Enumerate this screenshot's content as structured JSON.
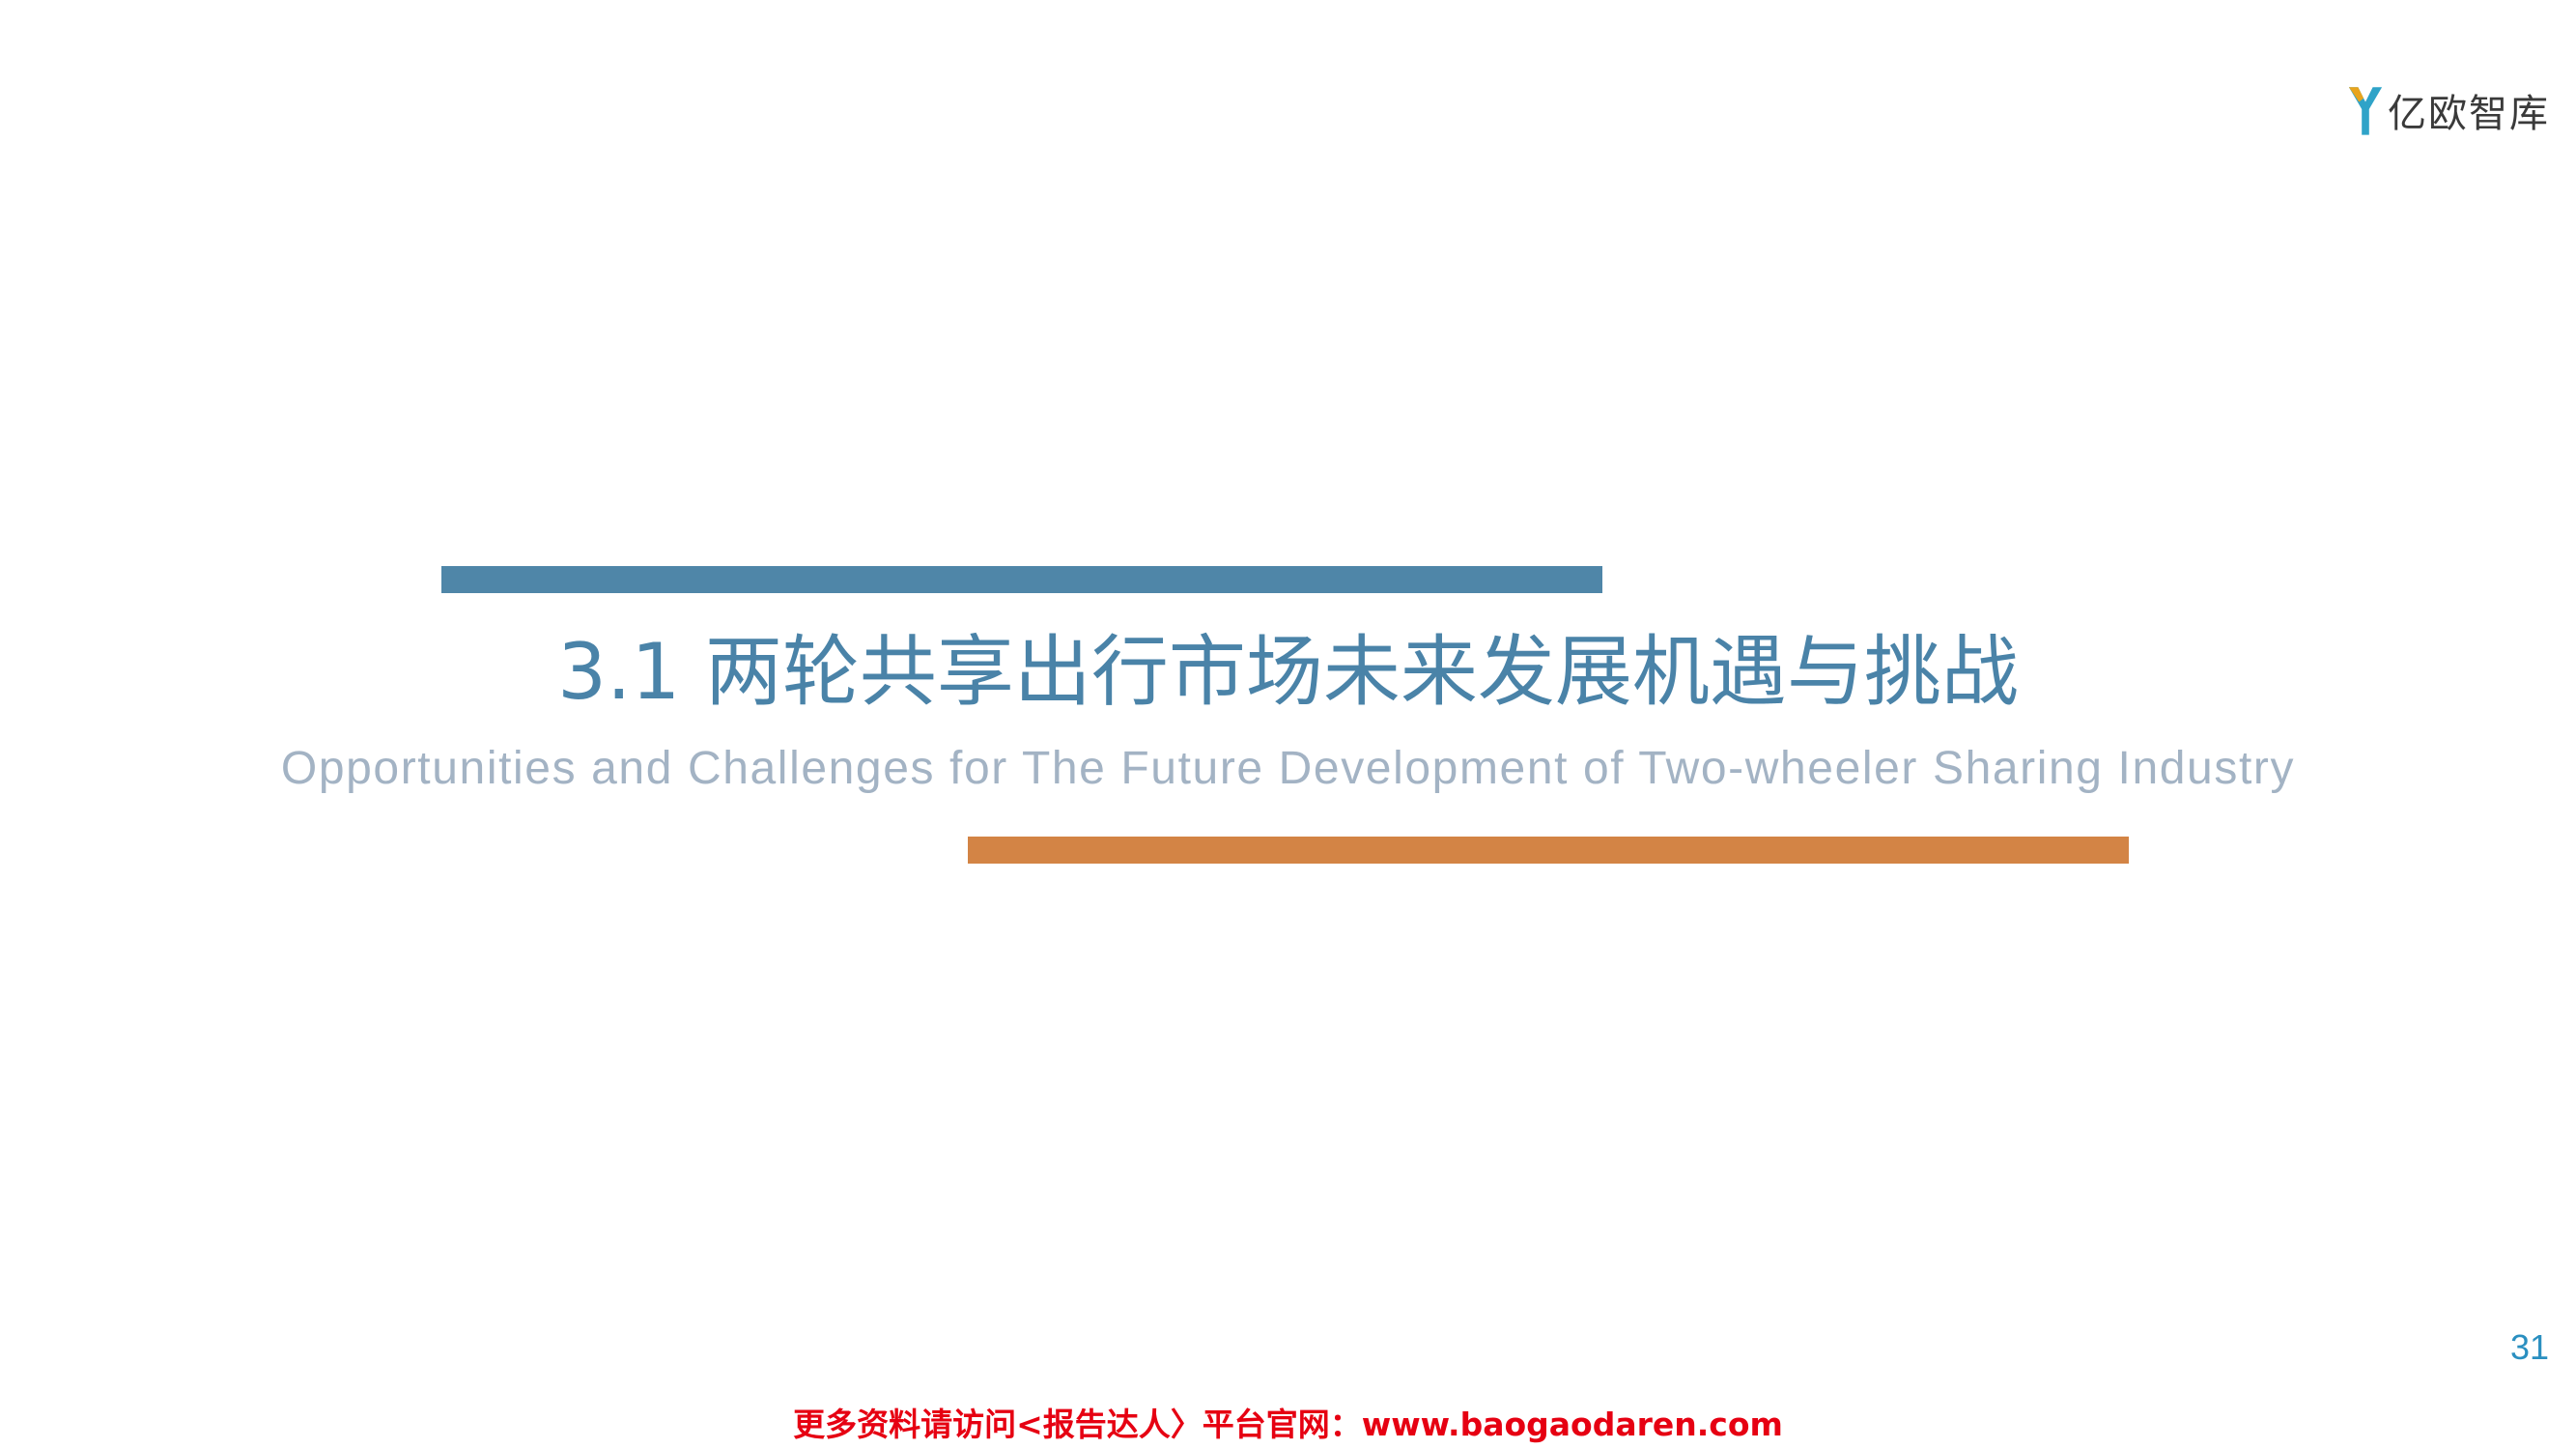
{
  "logo": {
    "text": "亿欧智库",
    "icon": "yiou-logo-icon"
  },
  "section": {
    "title": "3.1 两轮共享出行市场未来发展机遇与挑战",
    "subtitle": "Opportunities and Challenges for The Future Development of Two-wheeler Sharing Industry"
  },
  "page_number": "31",
  "footer": {
    "text": "更多资料请访问<报告达人〉平台官网：www.baogaodaren.com"
  },
  "colors": {
    "accent_blue": "#4f86a8",
    "accent_orange": "#d38445",
    "title_color": "#4a83a8",
    "subtitle_color": "#a3b3c4",
    "page_number_color": "#2a8fc0",
    "footer_color": "#e60012",
    "logo_teal": "#2fa3c8",
    "logo_gold": "#e8a41c"
  }
}
